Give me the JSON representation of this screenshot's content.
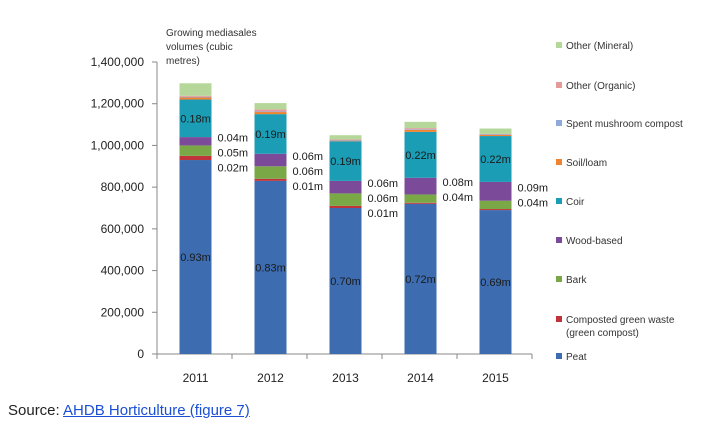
{
  "chart_data": {
    "type": "bar",
    "stacked": true,
    "title": "Growing media sales volumes (cubic metres)",
    "title_lines": [
      "Growing mediasales",
      "volumes (cubic",
      "metres)"
    ],
    "categories": [
      "2011",
      "2012",
      "2013",
      "2014",
      "2015"
    ],
    "ylim": [
      0,
      1400000
    ],
    "yticks": [
      0,
      200000,
      400000,
      600000,
      800000,
      1000000,
      1200000,
      1400000
    ],
    "ytick_labels": [
      "0",
      "200,000",
      "400,000",
      "600,000",
      "800,000",
      "1,000,000",
      "1,200,000",
      "1,400,000"
    ],
    "grid": false,
    "legend_position": "right",
    "series": [
      {
        "name": "Peat",
        "color": "#3d6db0",
        "values": [
          930000,
          830000,
          700000,
          720000,
          690000
        ],
        "labels": [
          "0.93m",
          "0.83m",
          "0.70m",
          "0.72m",
          "0.69m"
        ],
        "label_pos": "inside"
      },
      {
        "name": "Composted green waste (green compost)",
        "legend_lines": [
          "Composted green waste",
          "(green compost)"
        ],
        "color": "#c0333a",
        "values": [
          20000,
          10000,
          10000,
          5000,
          5000
        ],
        "labels": [
          "0.02m",
          "0.01m",
          "0.01m",
          null,
          null
        ],
        "label_pos": "side"
      },
      {
        "name": "Bark",
        "color": "#7aa846",
        "values": [
          50000,
          60000,
          60000,
          40000,
          40000
        ],
        "labels": [
          "0.05m",
          "0.06m",
          "0.06m",
          "0.04m",
          "0.04m"
        ],
        "label_pos": "side"
      },
      {
        "name": "Wood-based",
        "color": "#7b4b9a",
        "values": [
          40000,
          60000,
          60000,
          80000,
          90000
        ],
        "labels": [
          "0.04m",
          "0.06m",
          "0.06m",
          "0.08m",
          "0.09m"
        ],
        "label_pos": "side"
      },
      {
        "name": "Coir",
        "color": "#1b9db5",
        "values": [
          180000,
          190000,
          190000,
          220000,
          220000
        ],
        "labels": [
          "0.18m",
          "0.19m",
          "0.19m",
          "0.22m",
          "0.22m"
        ],
        "label_pos": "inside"
      },
      {
        "name": "Soil/loam",
        "color": "#f0832f",
        "values": [
          10000,
          10000,
          3000,
          10000,
          5000
        ]
      },
      {
        "name": "Spent mushroom compost",
        "color": "#8fa9d8",
        "values": [
          3000,
          3000,
          3000,
          3000,
          3000
        ]
      },
      {
        "name": "Other (Organic)",
        "color": "#e49a9b",
        "values": [
          5000,
          10000,
          3000,
          5000,
          3000
        ]
      },
      {
        "name": "Other (Mineral)",
        "color": "#b5d89a",
        "values": [
          60000,
          30000,
          20000,
          30000,
          25000
        ]
      }
    ]
  },
  "source": {
    "prefix": "Source: ",
    "link_text": "AHDB Horticulture (figure 7)"
  }
}
